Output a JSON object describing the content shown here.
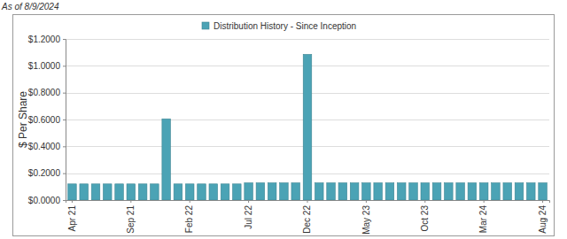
{
  "chart_data": {
    "type": "bar",
    "annotations": [
      "As of 8/9/2024"
    ],
    "y_label": "$ Per Share",
    "categories": [
      "Apr 21",
      null,
      null,
      null,
      null,
      "Sep 21",
      null,
      null,
      null,
      null,
      "Feb 22",
      null,
      null,
      null,
      null,
      "Jul 22",
      null,
      null,
      null,
      null,
      "Dec 22",
      null,
      null,
      null,
      null,
      "May 23",
      null,
      null,
      null,
      null,
      "Oct 23",
      null,
      null,
      null,
      null,
      "Mar 24",
      null,
      null,
      null,
      null,
      "Aug 24"
    ],
    "series": [
      {
        "name": "Distribution History - Since Inception",
        "color": "#4ba3b5",
        "values": [
          0.12,
          0.12,
          0.12,
          0.12,
          0.12,
          0.12,
          0.12,
          0.12,
          0.605,
          0.12,
          0.12,
          0.12,
          0.12,
          0.12,
          0.12,
          0.128,
          0.128,
          0.128,
          0.128,
          0.128,
          1.085,
          0.128,
          0.128,
          0.128,
          0.128,
          0.128,
          0.128,
          0.128,
          0.128,
          0.128,
          0.128,
          0.128,
          0.128,
          0.128,
          0.128,
          0.128,
          0.128,
          0.128,
          0.128,
          0.128,
          0.128
        ]
      }
    ],
    "ylim": [
      0,
      1.2
    ],
    "yticks": [
      {
        "value": 0,
        "label": "$0.0000"
      },
      {
        "value": 0.2,
        "label": "$0.2000"
      },
      {
        "value": 0.4,
        "label": "$0.4000"
      },
      {
        "value": 0.6,
        "label": "$0.6000"
      },
      {
        "value": 0.8,
        "label": "$0.8000"
      },
      {
        "value": 1.0,
        "label": "$1.0000"
      },
      {
        "value": 1.2,
        "label": "$1.2000"
      }
    ],
    "grid": true,
    "legend": "top"
  }
}
